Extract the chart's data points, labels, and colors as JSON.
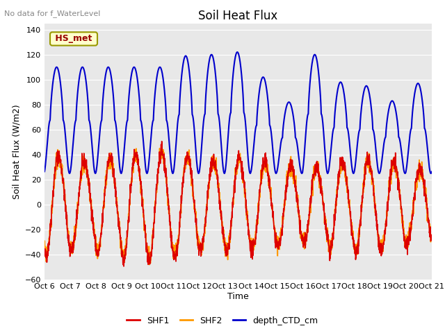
{
  "title": "Soil Heat Flux",
  "xlabel": "Time",
  "ylabel": "Soil Heat Flux (W/m2)",
  "top_left_text": "No data for f_WaterLevel",
  "legend_box_text": "HS_met",
  "ylim": [
    -60,
    145
  ],
  "yticks": [
    -60,
    -40,
    -20,
    0,
    20,
    40,
    60,
    80,
    100,
    120,
    140
  ],
  "x_tick_labels": [
    "Oct 6",
    "Oct 7",
    "Oct 8",
    "Oct 9",
    "Oct 10",
    "Oct 11",
    "Oct 12",
    "Oct 13",
    "Oct 14",
    "Oct 15",
    "Oct 16",
    "Oct 17",
    "Oct 18",
    "Oct 19",
    "Oct 20",
    "Oct 21"
  ],
  "colors": {
    "SHF1": "#dd0000",
    "SHF2": "#ff9900",
    "depth_CTD_cm": "#0000cc",
    "background": "#e8e8e8",
    "grid": "#ffffff",
    "legend_box_bg": "#ffffcc",
    "legend_box_border": "#999900",
    "top_text": "#888888"
  },
  "linewidths": {
    "SHF1": 1.2,
    "SHF2": 1.2,
    "depth_CTD_cm": 1.5
  },
  "figsize": [
    6.4,
    4.8
  ],
  "dpi": 100
}
